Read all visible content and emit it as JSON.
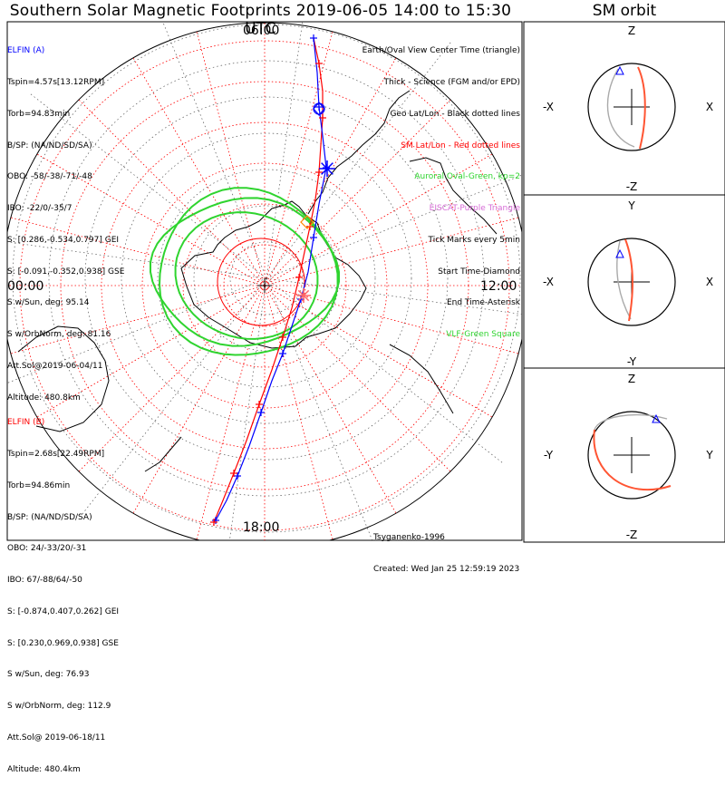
{
  "title": "Southern Solar Magnetic Footprints 2019-06-05 14:00 to 15:30 UTC",
  "orbit_title": "SM orbit",
  "mlt_labels": {
    "top": "06:00",
    "left": "00:00",
    "right": "12:00",
    "bottom": "18:00"
  },
  "elfin_a": {
    "name": "ELFIN (A)",
    "lines": [
      "Tspin=4.57s[13.12RPM]",
      "Torb=94.83min",
      "B/SP: (NA/ND/SD/SA)",
      "OBO: -58/-38/-71/-48",
      "IBO: -22/0/-35/7",
      "S: [0.286,-0.534,0.797] GEI",
      "S: [-0.091,-0.352,0.938] GSE",
      "S w/Sun, deg: 95.14",
      "S w/OrbNorm, deg: 81.16",
      "Att.Sol@2019-06-04/11",
      "Altitude: 480.8km"
    ],
    "color": "#0000ff"
  },
  "elfin_b": {
    "name": "ELFIN (B)",
    "lines": [
      "Tspin=2.68s[22.49RPM]",
      "Torb=94.86min",
      "B/SP: (NA/ND/SD/SA)",
      "OBO: 24/-33/20/-31",
      "IBO: 67/-88/64/-50",
      "S: [-0.874,0.407,0.262] GEI",
      "S: [0.230,0.969,0.938] GSE",
      "S w/Sun, deg: 76.93",
      "S w/OrbNorm, deg: 112.9",
      "Att.Sol@ 2019-06-18/11",
      "Altitude: 480.4km"
    ],
    "color": "#ff0000"
  },
  "legend": [
    {
      "text": "Earth/Oval View Center Time (triangle)",
      "color": "#000000"
    },
    {
      "text": "Thick - Science (FGM and/or EPD)",
      "color": "#000000"
    },
    {
      "text": "Geo Lat/Lon - Black dotted lines",
      "color": "#000000"
    },
    {
      "text": "SM Lat/Lon - Red dotted lines",
      "color": "#ff0000"
    },
    {
      "text": "Auroral Oval-Green, kp=2",
      "color": "#2fd42f"
    },
    {
      "text": "EISCAT-Purple Triangle",
      "color": "#d66bd6"
    },
    {
      "text": "Tick Marks every 5min",
      "color": "#000000"
    },
    {
      "text": "Start Time-Diamond",
      "color": "#000000"
    },
    {
      "text": "End Time-Asterisk",
      "color": "#000000"
    },
    {
      "text": "VLF-Green Square",
      "color": "#2fd42f"
    }
  ],
  "credit": [
    "Tsyganenko-1996",
    "Created: Wed Jan 25 12:59:19 2023"
  ],
  "orbit_panels": [
    {
      "top": "Z",
      "bottom": "-Z",
      "left": "-X",
      "right": "X"
    },
    {
      "top": "Y",
      "bottom": "-Y",
      "left": "-X",
      "right": "X"
    },
    {
      "top": "Z",
      "bottom": "-Z",
      "left": "-Y",
      "right": "Y"
    }
  ],
  "chart_data": {
    "type": "scatter",
    "title": "Southern Solar Magnetic Footprints 2019-06-05 14:00 to 15:30 UTC",
    "projection": "polar (south)",
    "series": [
      {
        "name": "ELFIN (A)",
        "color": "#0000ff"
      },
      {
        "name": "ELFIN (B)",
        "color": "#ff0000"
      }
    ],
    "auroral_oval_kp": 2,
    "tick_interval_min": 5
  }
}
